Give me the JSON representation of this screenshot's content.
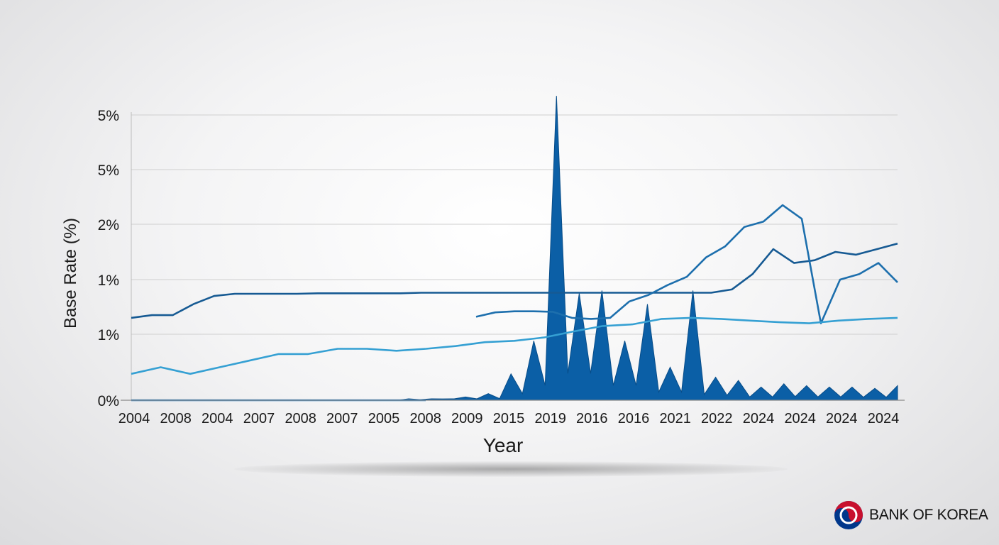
{
  "chart_data": {
    "type": "area",
    "title": "",
    "xlabel": "Year",
    "ylabel": "Base Rate (%)",
    "ytick_labels": [
      "0%",
      "1%",
      "1%",
      "2%",
      "5%",
      "5%"
    ],
    "xtick_labels": [
      "2004",
      "2008",
      "2004",
      "2007",
      "2008",
      "2007",
      "2005",
      "2008",
      "2009",
      "2015",
      "2019",
      "2016",
      "2016",
      "2021",
      "2022",
      "2024",
      "2024",
      "2024",
      "2024"
    ],
    "grid": true,
    "legend": "none",
    "series": [
      {
        "color": "#165a93",
        "style": "line",
        "values": [
          1.3,
          1.35,
          1.35,
          1.55,
          1.7,
          1.74,
          1.74,
          1.74,
          1.74,
          1.75,
          1.75,
          1.75,
          1.75,
          1.75,
          1.76,
          1.76,
          1.76,
          1.76,
          1.76,
          1.76,
          1.76,
          1.76,
          1.76,
          1.76,
          1.76,
          1.76,
          1.76,
          1.76,
          1.76,
          1.82,
          2.1,
          2.55,
          2.3,
          2.35,
          2.5,
          2.45,
          2.55,
          2.65
        ]
      },
      {
        "color": "#1d6fad",
        "style": "line",
        "values": [
          null,
          null,
          null,
          null,
          null,
          null,
          null,
          null,
          null,
          null,
          null,
          null,
          null,
          null,
          null,
          null,
          null,
          null,
          1.32,
          1.4,
          1.42,
          1.42,
          1.41,
          1.3,
          1.28,
          1.3,
          1.6,
          1.72,
          1.9,
          2.05,
          2.4,
          2.6,
          2.95,
          3.05,
          3.35,
          3.1,
          1.2,
          2.0,
          2.1,
          2.3,
          1.95
        ]
      },
      {
        "color": "#35a0d3",
        "style": "line",
        "values": [
          0.4,
          0.5,
          0.4,
          0.5,
          0.6,
          0.7,
          0.7,
          0.78,
          0.78,
          0.75,
          0.78,
          0.82,
          0.88,
          0.9,
          0.95,
          1.05,
          1.15,
          1.18,
          1.28,
          1.3,
          1.28,
          1.25,
          1.22,
          1.2,
          1.25,
          1.28,
          1.3
        ]
      },
      {
        "color": "#0b5fa6",
        "style": "area",
        "values": [
          0.0,
          0.01,
          0.02,
          0.05,
          0.1,
          0.4,
          0.9,
          5.35,
          1.75,
          1.8,
          0.9,
          1.55,
          0.5,
          1.8,
          0.35,
          0.3,
          0.2,
          0.25,
          0.22,
          0.2,
          0.2,
          0.18,
          0.22
        ]
      },
      {
        "color": "#2d7fc0",
        "style": "line",
        "values": [
          0.0,
          0.0,
          0.0,
          0.0,
          0.0,
          0.0,
          0.0,
          0.0,
          0.0
        ]
      }
    ]
  },
  "brand": {
    "name": "BANK OF KOREA",
    "icon": "taegeuk-emblem-icon",
    "colors": {
      "red": "#c8102e",
      "blue": "#00378b"
    }
  }
}
